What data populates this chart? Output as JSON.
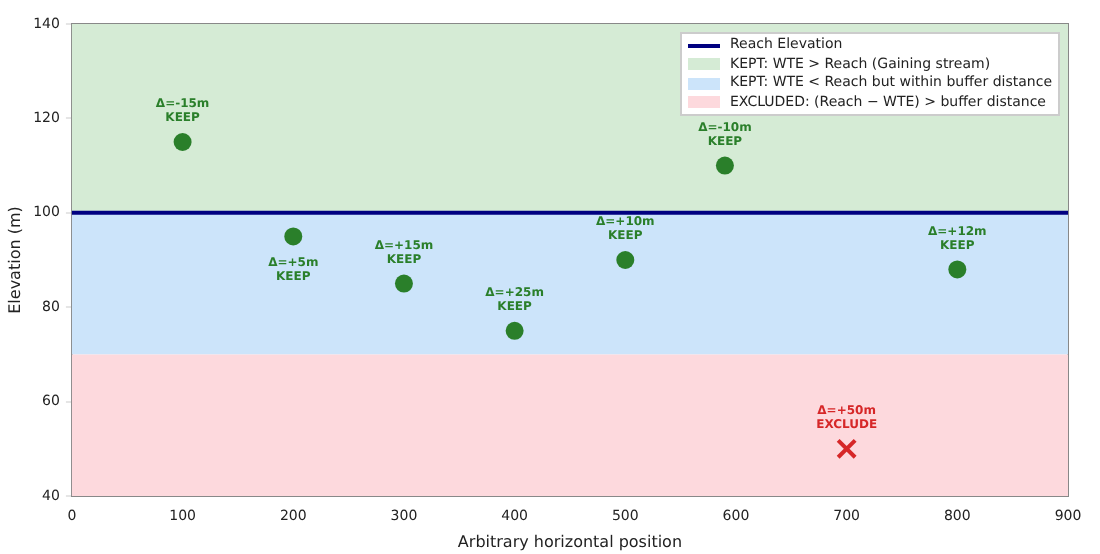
{
  "chart_data": {
    "type": "scatter",
    "xlabel": "Arbitrary horizontal position",
    "ylabel": "Elevation (m)",
    "xlim": [
      0,
      900
    ],
    "xticks": [
      0,
      100,
      200,
      300,
      400,
      500,
      600,
      700,
      800,
      900
    ],
    "ylim": [
      40,
      140
    ],
    "yticks": [
      40,
      60,
      80,
      100,
      120,
      140
    ],
    "series": [
      {
        "color": "#2a7f2a",
        "marker": "circle",
        "x": [
          100,
          200,
          300,
          400,
          500,
          590,
          800
        ],
        "values": [
          115,
          95,
          85,
          75,
          90,
          110,
          88
        ]
      },
      {
        "color": "#d62728",
        "marker": "cross",
        "x": [
          700
        ],
        "values": [
          50
        ]
      }
    ],
    "annotations": [
      {
        "text": "Δ=-15m\nKEEP",
        "x": 100,
        "y": 115
      },
      {
        "text": "Δ=+5m\nKEEP",
        "x": 200,
        "y": 95
      },
      {
        "text": "Δ=+15m\nKEEP",
        "x": 300,
        "y": 85
      },
      {
        "text": "Δ=+25m\nKEEP",
        "x": 400,
        "y": 75
      },
      {
        "text": "Δ=+10m\nKEEP",
        "x": 500,
        "y": 90
      },
      {
        "text": "Δ=-10m\nKEEP",
        "x": 590,
        "y": 110
      },
      {
        "text": "Δ=+12m\nKEEP",
        "x": 800,
        "y": 88
      },
      {
        "text": "Δ=+50m\nEXCLUDE",
        "x": 700,
        "y": 50
      }
    ],
    "ref_lines": [
      {
        "axis": "y",
        "value": 100,
        "label": "Reach Elevation",
        "color": "#000080"
      }
    ],
    "bands": [
      {
        "axis": "y",
        "from": 100,
        "to": 140,
        "label": "KEPT: WTE > Reach (Gaining stream)",
        "color": "#d5ebd5"
      },
      {
        "axis": "y",
        "from": 70,
        "to": 100,
        "label": "KEPT: WTE < Reach but within buffer distance",
        "color": "#cce4fa"
      },
      {
        "axis": "y",
        "from": 40,
        "to": 70,
        "label": "EXCLUDED: (Reach − WTE) > buffer distance",
        "color": "#fdd9dd"
      }
    ],
    "grid": false,
    "legend": "top right"
  }
}
